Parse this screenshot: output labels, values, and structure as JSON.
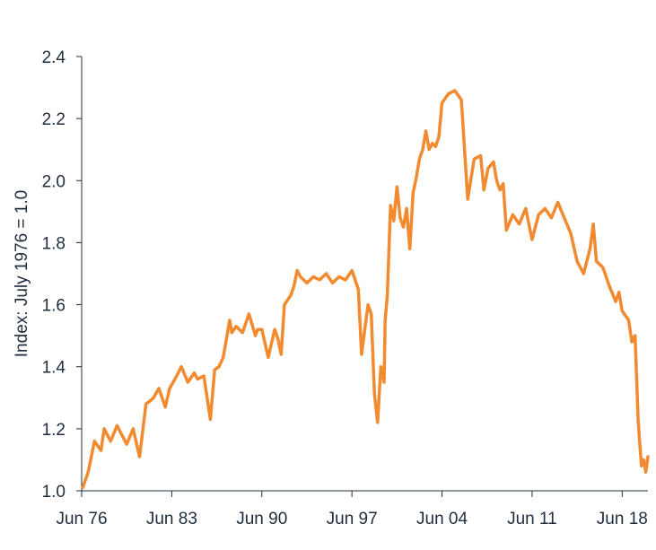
{
  "chart_data": {
    "type": "line",
    "title": "",
    "xlabel": "",
    "ylabel": "Index: July 1976 = 1.0",
    "ylim": [
      1.0,
      2.4
    ],
    "yticks": [
      "1.0",
      "1.2",
      "1.4",
      "1.6",
      "1.8",
      "2.0",
      "2.2",
      "2.4"
    ],
    "xlim": [
      "1976-06",
      "2020-06"
    ],
    "xticks": [
      "Jun 76",
      "Jun 83",
      "Jun 90",
      "Jun 97",
      "Jun 04",
      "Jun 11",
      "Jun 18"
    ],
    "grid": false,
    "legend": "none",
    "colors": {
      "line": "#F28A30",
      "axis": "#1f2d3d"
    },
    "series": [
      {
        "x": [
          "1976-07",
          "1976-12",
          "1977-06",
          "1977-12",
          "1978-03",
          "1978-09",
          "1979-03",
          "1979-06",
          "1979-12",
          "1980-06",
          "1980-12",
          "1981-06",
          "1981-10",
          "1982-01",
          "1982-06",
          "1982-12",
          "1983-04",
          "1983-09",
          "1984-03",
          "1984-09",
          "1985-03",
          "1985-06",
          "1985-12",
          "1986-06",
          "1986-10",
          "1987-02",
          "1987-06",
          "1987-12",
          "1988-02",
          "1988-06",
          "1988-12",
          "1989-06",
          "1989-12",
          "1990-02",
          "1990-06",
          "1990-12",
          "1991-06",
          "1991-09",
          "1991-12",
          "1992-03",
          "1992-09",
          "1992-12",
          "1993-03",
          "1993-06",
          "1993-12",
          "1994-06",
          "1994-12",
          "1995-06",
          "1995-12",
          "1996-06",
          "1996-12",
          "1997-06",
          "1997-12",
          "1998-03",
          "1998-09",
          "1998-12",
          "1999-03",
          "1999-06",
          "1999-09",
          "1999-12",
          "2000-01",
          "2000-03",
          "2000-06",
          "2000-09",
          "2000-12",
          "2001-03",
          "2001-06",
          "2001-09",
          "2001-12",
          "2002-01",
          "2002-03",
          "2002-06",
          "2002-09",
          "2002-12",
          "2003-03",
          "2003-06",
          "2003-09",
          "2003-12",
          "2004-03",
          "2004-06",
          "2004-12",
          "2005-06",
          "2005-12",
          "2006-06",
          "2006-12",
          "2007-06",
          "2007-09",
          "2008-01",
          "2008-06",
          "2008-09",
          "2008-12",
          "2009-03",
          "2009-06",
          "2009-12",
          "2010-06",
          "2010-12",
          "2011-06",
          "2011-12",
          "2012-06",
          "2012-12",
          "2013-06",
          "2013-12",
          "2014-06",
          "2014-12",
          "2015-06",
          "2015-12",
          "2016-03",
          "2016-06",
          "2016-12",
          "2017-06",
          "2017-12",
          "2018-03",
          "2018-06",
          "2018-12",
          "2019-03",
          "2019-06",
          "2019-09",
          "2019-12",
          "2020-02",
          "2020-04",
          "2020-06"
        ],
        "values": [
          1.01,
          1.06,
          1.16,
          1.13,
          1.2,
          1.16,
          1.21,
          1.19,
          1.15,
          1.2,
          1.11,
          1.28,
          1.29,
          1.3,
          1.33,
          1.27,
          1.33,
          1.36,
          1.4,
          1.35,
          1.38,
          1.36,
          1.37,
          1.23,
          1.39,
          1.4,
          1.43,
          1.55,
          1.51,
          1.53,
          1.51,
          1.57,
          1.5,
          1.52,
          1.52,
          1.43,
          1.52,
          1.49,
          1.44,
          1.6,
          1.63,
          1.66,
          1.71,
          1.69,
          1.67,
          1.69,
          1.68,
          1.7,
          1.67,
          1.69,
          1.68,
          1.71,
          1.65,
          1.44,
          1.6,
          1.57,
          1.31,
          1.22,
          1.4,
          1.35,
          1.55,
          1.63,
          1.92,
          1.87,
          1.98,
          1.88,
          1.85,
          1.91,
          1.78,
          1.84,
          1.96,
          2.01,
          2.07,
          2.1,
          2.16,
          2.1,
          2.12,
          2.11,
          2.14,
          2.25,
          2.28,
          2.29,
          2.26,
          1.94,
          2.07,
          2.08,
          1.97,
          2.04,
          2.06,
          2.0,
          1.97,
          1.99,
          1.84,
          1.89,
          1.86,
          1.91,
          1.81,
          1.89,
          1.91,
          1.88,
          1.93,
          1.88,
          1.83,
          1.74,
          1.7,
          1.78,
          1.86,
          1.74,
          1.72,
          1.66,
          1.61,
          1.64,
          1.58,
          1.55,
          1.48,
          1.5,
          1.22,
          1.08,
          1.1,
          1.06,
          1.11
        ]
      }
    ]
  }
}
